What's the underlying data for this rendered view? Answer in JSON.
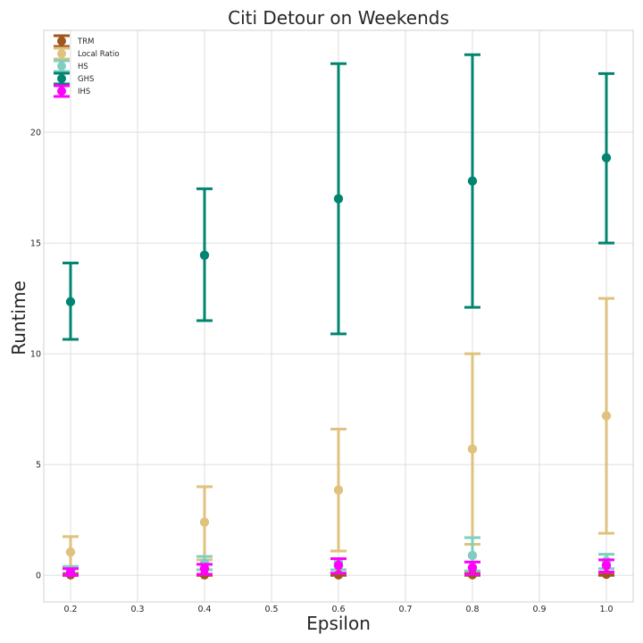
{
  "chart_data": {
    "type": "scatter",
    "title": "Citi Detour on Weekends",
    "xlabel": "Epsilon",
    "ylabel": "Runtime",
    "xlim": [
      0.16,
      1.04
    ],
    "ylim": [
      -1.2,
      24.6
    ],
    "x_ticks": [
      "0.2",
      "0.3",
      "0.4",
      "0.5",
      "0.6",
      "0.7",
      "0.8",
      "0.9",
      "1.0"
    ],
    "y_ticks": [
      "0",
      "5",
      "10",
      "15",
      "20"
    ],
    "grid": true,
    "legend_position": "top-left",
    "error_bars": true,
    "x": [
      0.2,
      0.4,
      0.6,
      0.8,
      1.0
    ],
    "series": [
      {
        "name": "TRM",
        "color": "#a0561a",
        "values": [
          0.02,
          0.02,
          0.02,
          0.03,
          0.05
        ],
        "lower": [
          0.0,
          0.0,
          0.0,
          0.0,
          0.0
        ],
        "upper": [
          0.05,
          0.05,
          0.06,
          0.08,
          0.12
        ]
      },
      {
        "name": "Local Ratio",
        "color": "#dfc27d",
        "values": [
          1.05,
          2.4,
          3.85,
          5.7,
          7.2
        ],
        "lower": [
          0.3,
          0.7,
          1.1,
          1.4,
          1.9
        ],
        "upper": [
          1.75,
          4.0,
          6.6,
          10.0,
          12.5
        ]
      },
      {
        "name": "HS",
        "color": "#80cdc1",
        "values": [
          0.25,
          0.55,
          0.6,
          0.9,
          0.65
        ],
        "lower": [
          0.1,
          0.25,
          0.25,
          0.2,
          0.3
        ],
        "upper": [
          0.4,
          0.85,
          0.75,
          1.7,
          0.95
        ]
      },
      {
        "name": "GHS",
        "color": "#018571",
        "values": [
          12.35,
          14.45,
          17.0,
          17.8,
          18.85
        ],
        "lower": [
          10.65,
          11.5,
          10.9,
          12.1,
          15.0
        ],
        "upper": [
          14.1,
          17.45,
          23.1,
          23.5,
          22.65
        ]
      },
      {
        "name": "IHS",
        "color": "#ff00ff",
        "values": [
          0.12,
          0.3,
          0.45,
          0.35,
          0.45
        ],
        "lower": [
          0.0,
          0.05,
          0.1,
          0.05,
          0.15
        ],
        "upper": [
          0.3,
          0.5,
          0.75,
          0.6,
          0.7
        ]
      }
    ]
  }
}
